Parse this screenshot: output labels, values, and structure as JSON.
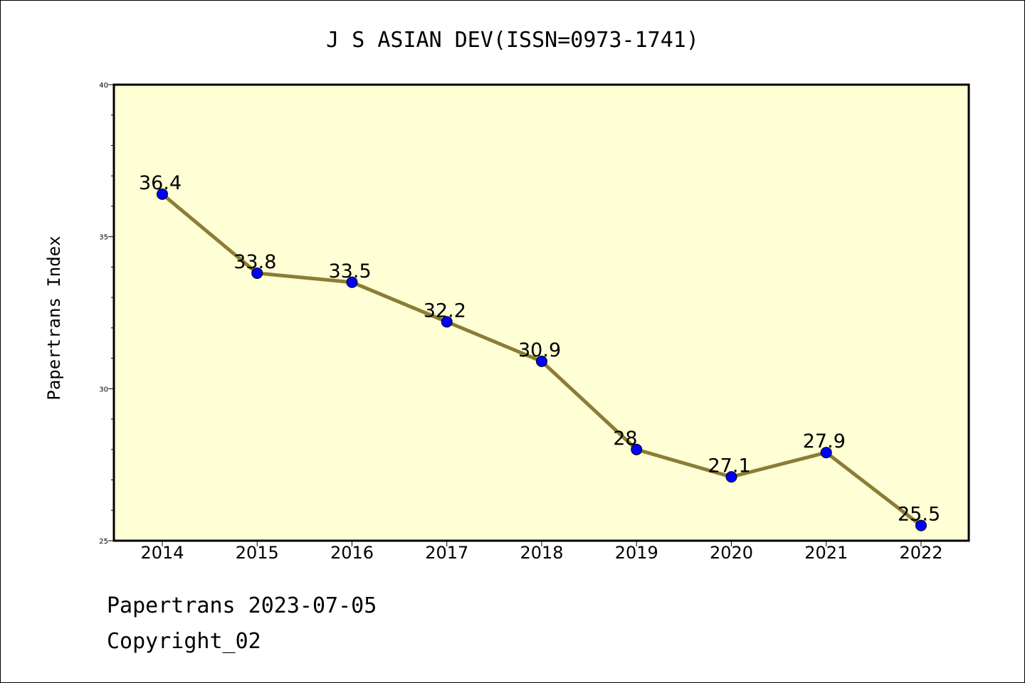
{
  "chart_data": {
    "type": "line",
    "title": "J S ASIAN DEV(ISSN=0973-1741)",
    "xlabel": "",
    "ylabel": "Papertrans Index",
    "categories": [
      "2014",
      "2015",
      "2016",
      "2017",
      "2018",
      "2019",
      "2020",
      "2021",
      "2022"
    ],
    "series": [
      {
        "values": [
          36.4,
          33.8,
          33.5,
          32.2,
          30.9,
          28,
          27.1,
          27.9,
          25.5
        ]
      }
    ],
    "data_labels": [
      "36.4",
      "33.8",
      "33.5",
      "32.2",
      "30.9",
      "28",
      "27.1",
      "27.9",
      "25.5"
    ],
    "ylim": [
      25,
      40
    ],
    "yticks": [
      "25",
      "30",
      "35",
      "40"
    ],
    "grid": false,
    "colors": {
      "plot_background": "#ffffd5",
      "line": "#8b7d35",
      "marker": "#0000ff"
    }
  },
  "footer": {
    "line1": "Papertrans 2023-07-05",
    "line2": "Copyright_02"
  }
}
